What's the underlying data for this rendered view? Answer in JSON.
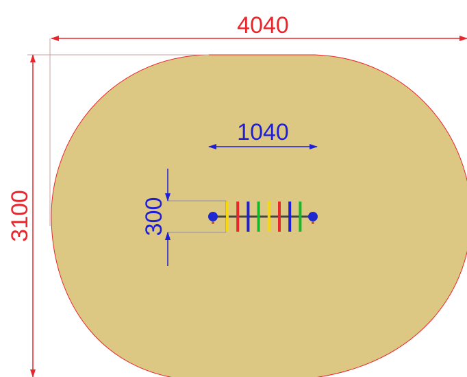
{
  "dimensions": {
    "overall_width": "4040",
    "overall_height": "3100",
    "equipment_length": "1040",
    "equipment_width": "300"
  },
  "colors": {
    "surface_fill": "#dcc882",
    "outline": "#e8262b",
    "dimension_red": "#e8262b",
    "dimension_blue": "#1f1fd6",
    "extension_line": "#c8a0a0",
    "post_blue": "#1e2ad0",
    "rail_dark": "#444444",
    "bar_yellow": "#f5d80f",
    "bar_red": "#e8262b",
    "bar_blue": "#1f1fd6",
    "bar_green": "#19b82a"
  },
  "equipment_bars": [
    "yellow",
    "red",
    "blue",
    "green",
    "yellow",
    "red",
    "blue",
    "green"
  ]
}
